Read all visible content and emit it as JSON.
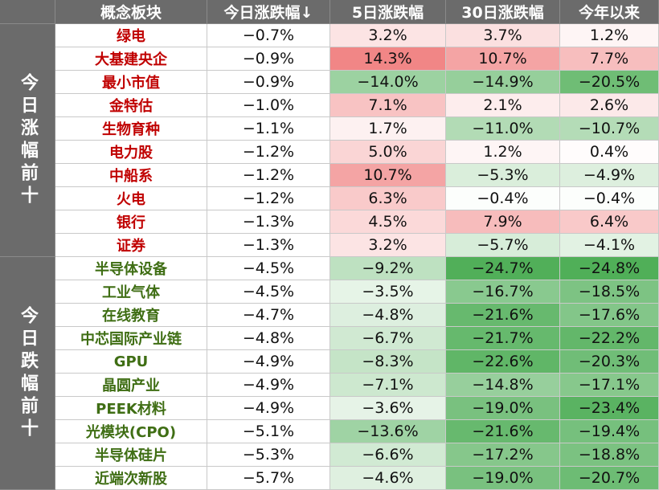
{
  "headers": [
    "概念板块",
    "今日涨跌幅↓",
    "5日涨跌幅",
    "30日涨跌幅",
    "今年以来"
  ],
  "groups": [
    {
      "label": "今日涨幅前十",
      "rows": [
        {
          "name": "绿电",
          "today": "−0.7%",
          "d5": "3.2%",
          "d30": "3.7%",
          "ytd": "1.2%"
        },
        {
          "name": "大基建央企",
          "today": "−0.9%",
          "d5": "14.3%",
          "d30": "10.7%",
          "ytd": "7.7%"
        },
        {
          "name": "最小市值",
          "today": "−0.9%",
          "d5": "−14.0%",
          "d30": "−14.9%",
          "ytd": "−20.5%"
        },
        {
          "name": "金特估",
          "today": "−1.0%",
          "d5": "7.1%",
          "d30": "2.1%",
          "ytd": "2.6%"
        },
        {
          "name": "生物育种",
          "today": "−1.1%",
          "d5": "1.7%",
          "d30": "−11.0%",
          "ytd": "−10.7%"
        },
        {
          "name": "电力股",
          "today": "−1.2%",
          "d5": "5.0%",
          "d30": "1.2%",
          "ytd": "0.4%"
        },
        {
          "name": "中船系",
          "today": "−1.2%",
          "d5": "10.7%",
          "d30": "−5.3%",
          "ytd": "−4.9%"
        },
        {
          "name": "火电",
          "today": "−1.2%",
          "d5": "6.3%",
          "d30": "−0.4%",
          "ytd": "−0.4%"
        },
        {
          "name": "银行",
          "today": "−1.3%",
          "d5": "4.5%",
          "d30": "7.9%",
          "ytd": "6.4%"
        },
        {
          "name": "证券",
          "today": "−1.3%",
          "d5": "3.2%",
          "d30": "−5.7%",
          "ytd": "−4.1%"
        }
      ]
    },
    {
      "label": "今日跌幅前十",
      "rows": [
        {
          "name": "半导体设备",
          "today": "−4.5%",
          "d5": "−9.2%",
          "d30": "−24.7%",
          "ytd": "−24.8%"
        },
        {
          "name": "工业气体",
          "today": "−4.5%",
          "d5": "−3.5%",
          "d30": "−16.7%",
          "ytd": "−18.5%"
        },
        {
          "name": "在线教育",
          "today": "−4.7%",
          "d5": "−4.8%",
          "d30": "−21.6%",
          "ytd": "−17.6%"
        },
        {
          "name": "中芯国际产业链",
          "today": "−4.8%",
          "d5": "−6.7%",
          "d30": "−21.7%",
          "ytd": "−22.2%"
        },
        {
          "name": "GPU",
          "today": "−4.9%",
          "d5": "−8.3%",
          "d30": "−22.6%",
          "ytd": "−20.3%"
        },
        {
          "name": "晶圆产业",
          "today": "−4.9%",
          "d5": "−7.1%",
          "d30": "−14.8%",
          "ytd": "−17.1%"
        },
        {
          "name": "PEEK材料",
          "today": "−4.9%",
          "d5": "−3.6%",
          "d30": "−19.0%",
          "ytd": "−23.4%"
        },
        {
          "name": "光模块(CPO)",
          "today": "−5.1%",
          "d5": "−13.6%",
          "d30": "−21.6%",
          "ytd": "−19.4%"
        },
        {
          "name": "半导体硅片",
          "today": "−5.3%",
          "d5": "−6.6%",
          "d30": "−17.2%",
          "ytd": "−18.8%"
        },
        {
          "name": "近端次新股",
          "today": "−5.7%",
          "d5": "−4.6%",
          "d30": "−19.0%",
          "ytd": "−20.7%"
        }
      ]
    }
  ],
  "colors": {
    "header_bg": "#6b6b6b",
    "positive_max": "#f08080",
    "negative_max": "#4fae57",
    "up_name": "#c00000",
    "down_name": "#3f6e14"
  }
}
